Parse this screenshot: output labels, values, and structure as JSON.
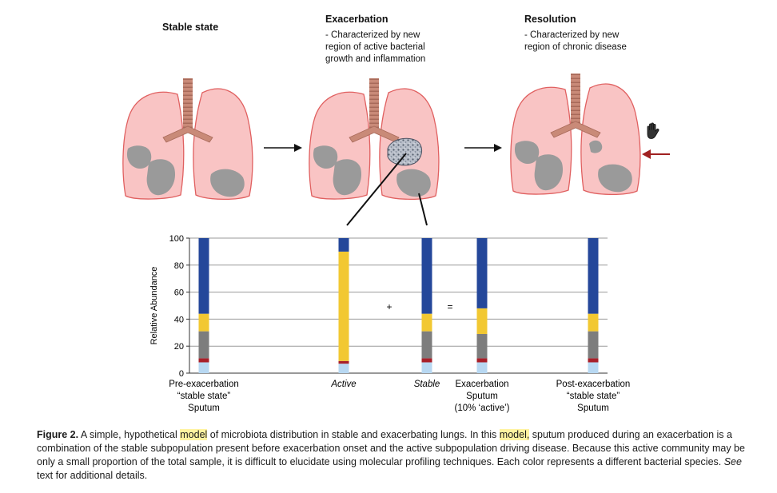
{
  "stages": [
    {
      "title": "Stable state",
      "description": []
    },
    {
      "title": "Exacerbation",
      "description": [
        "- Characterized by new",
        "region of active bacterial",
        "growth and inflammation"
      ]
    },
    {
      "title": "Resolution",
      "description": [
        "- Characterized by new",
        "region of chronic disease"
      ]
    }
  ],
  "colors": {
    "lung_fill": "#f9c4c4",
    "lung_stroke": "#e06060",
    "trachea": "#c98a78",
    "patch": "#9a9a9a",
    "light_blue": "#b8d8f2",
    "red": "#a8202a",
    "gray": "#7d7d7d",
    "yellow": "#f2c832",
    "dark_blue": "#24479a",
    "arrow_red": "#a02020",
    "highlight": "#fff3a0"
  },
  "operators": {
    "plus": "+",
    "equals": "="
  },
  "chart_data": {
    "type": "bar",
    "stacked": true,
    "ylabel": "Relative Abundance",
    "ylim": [
      0,
      100
    ],
    "yticks": [
      0,
      20,
      40,
      60,
      80,
      100
    ],
    "grid": true,
    "categories": [
      {
        "lines": [
          "Pre-exacerbation",
          "“stable state”",
          "Sputum"
        ],
        "italic": false
      },
      {
        "lines": [
          "Active"
        ],
        "italic": true
      },
      {
        "lines": [
          "Stable"
        ],
        "italic": true
      },
      {
        "lines": [
          "Exacerbation",
          "Sputum",
          "(10% ‘active’)"
        ],
        "italic": false
      },
      {
        "lines": [
          "Post-exacerbation",
          "“stable state”",
          "Sputum"
        ],
        "italic": false
      }
    ],
    "series": [
      {
        "color": "#b8d8f2",
        "values": [
          8,
          7,
          8,
          8,
          8
        ]
      },
      {
        "color": "#a8202a",
        "values": [
          3,
          2,
          3,
          3,
          3
        ]
      },
      {
        "color": "#7d7d7d",
        "values": [
          20,
          0,
          20,
          18,
          20
        ]
      },
      {
        "color": "#f2c832",
        "values": [
          13,
          81,
          13,
          19,
          13
        ]
      },
      {
        "color": "#24479a",
        "values": [
          56,
          10,
          56,
          52,
          56
        ]
      }
    ]
  },
  "caption": {
    "label": "Figure 2.",
    "part1": " A simple, hypothetical ",
    "hl1": "model",
    "part2": " of microbiota distribution in stable and exacerbating lungs. In this ",
    "hl2": "model,",
    "part3": " sputum produced during an exacerbation is a combination of the stable subpopulation present before exacerbation onset and the active subpopulation driving disease. Because this active community may be only a small proportion of the total sample, it is difficult to elucidate using molecular profiling techniques. Each color represents a different bacterial species. ",
    "see": "See",
    "part4": " text for additional details."
  },
  "icons": {
    "cursor": "grab-hand-icon"
  }
}
